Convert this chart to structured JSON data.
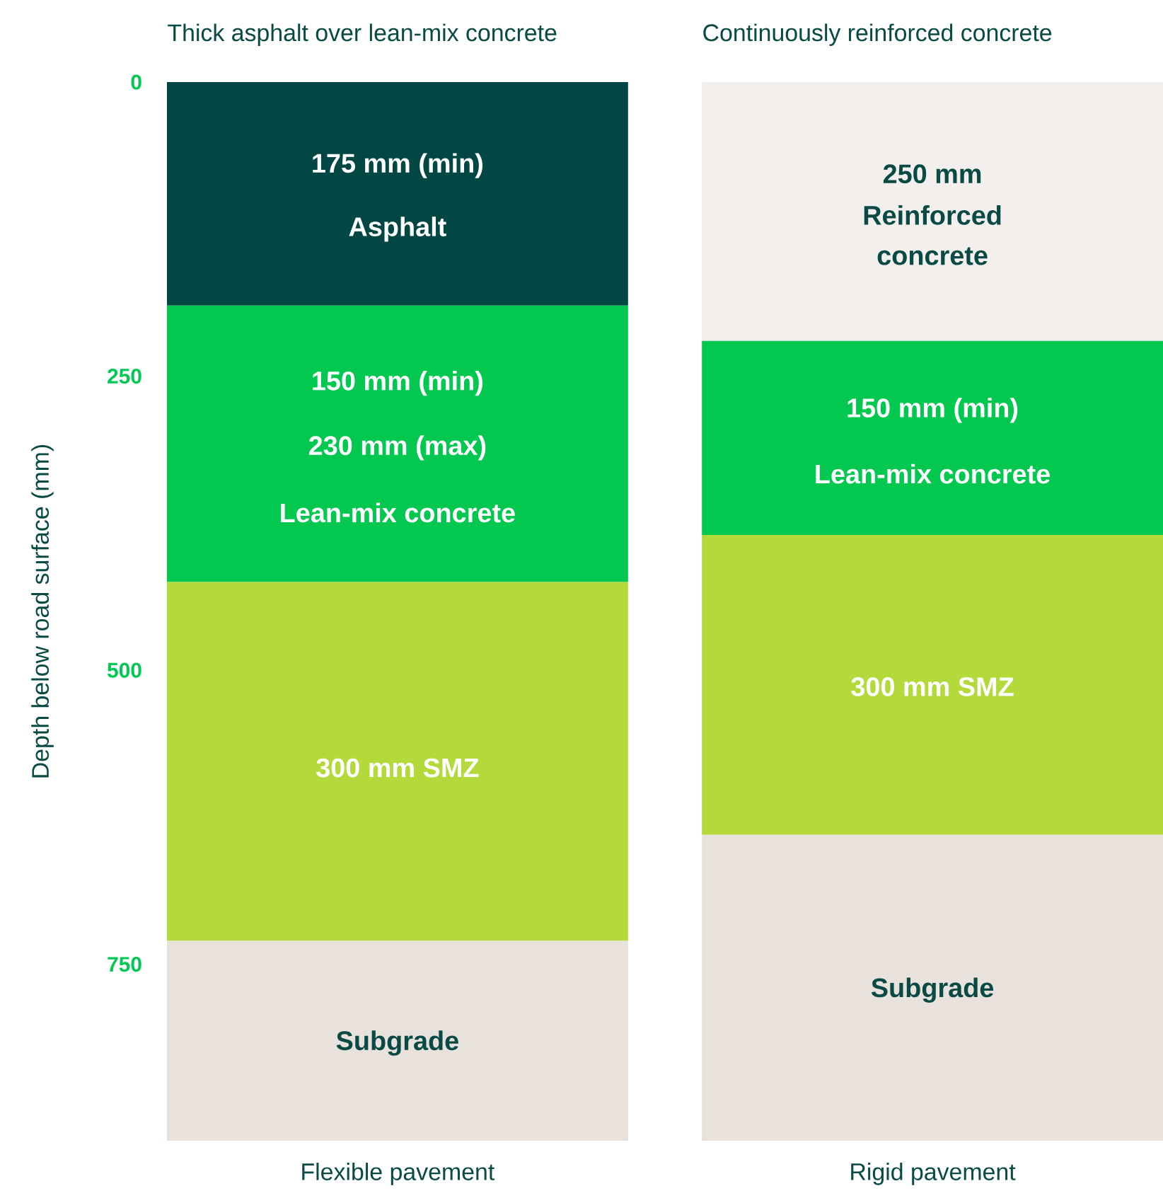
{
  "chart_data": {
    "type": "bar",
    "stacked": true,
    "ylabel": "Depth below road surface (mm)",
    "categories": [
      "Flexible pavement",
      "Rigid pavement"
    ],
    "ylim": [
      900,
      0
    ],
    "yticks": [
      0,
      250,
      500,
      750
    ],
    "grid": false,
    "series": [
      {
        "color": "#024744",
        "values": [
          190,
          null
        ]
      },
      {
        "color": "#f3efec",
        "values": [
          null,
          220
        ]
      },
      {
        "color": "#02c850",
        "values": [
          235,
          165
        ]
      },
      {
        "color": "#b3d93a",
        "values": [
          305,
          255
        ]
      },
      {
        "color": "#e9e1dc",
        "values": [
          170,
          260
        ]
      }
    ],
    "annotations": [
      "Thick asphalt over lean-mix concrete",
      "Continuously reinforced concrete",
      "175 mm (min)",
      "Asphalt",
      "150 mm (min)",
      "230 mm (max)",
      "Lean-mix concrete",
      "300 mm SMZ",
      "Subgrade",
      "250 mm",
      "Reinforced",
      "concrete",
      "150 mm (min)",
      "Lean-mix concrete",
      "300 mm SMZ",
      "Subgrade"
    ]
  }
}
